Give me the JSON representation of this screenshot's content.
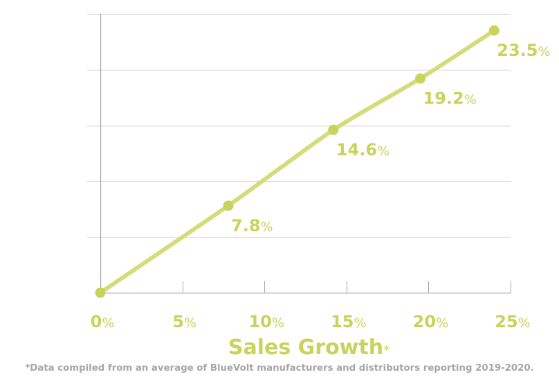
{
  "colors": {
    "accent": "#c8d35c",
    "line": "#d3dc7a",
    "grid": "#c9c9c9",
    "axis": "#a9a9a9",
    "footnote": "#a6a6a6"
  },
  "chart_data": {
    "type": "line",
    "x_axis": {
      "label": "Sales Growth",
      "label_suffix": "*",
      "ticks": [
        {
          "value": 0,
          "number": "0",
          "unit": "%"
        },
        {
          "value": 5,
          "number": "5",
          "unit": "%"
        },
        {
          "value": 10,
          "number": "10",
          "unit": "%"
        },
        {
          "value": 15,
          "number": "15",
          "unit": "%"
        },
        {
          "value": 20,
          "number": "20",
          "unit": "%"
        },
        {
          "value": 25,
          "number": "25",
          "unit": "%"
        }
      ],
      "range": [
        0,
        25
      ]
    },
    "y_axis": {
      "label": "",
      "range": [
        0,
        25
      ],
      "gridlines": 5
    },
    "grid": true,
    "series": [
      {
        "points": [
          {
            "x": 0,
            "y": 0,
            "label_number": "",
            "label_unit": ""
          },
          {
            "x": 7.8,
            "y": 7.8,
            "label_number": "7.8",
            "label_unit": "%"
          },
          {
            "x": 14.2,
            "y": 14.6,
            "label_number": "14.6",
            "label_unit": "%"
          },
          {
            "x": 19.5,
            "y": 19.2,
            "label_number": "19.2",
            "label_unit": "%"
          },
          {
            "x": 24,
            "y": 23.5,
            "label_number": "23.5",
            "label_unit": "%"
          }
        ]
      }
    ]
  },
  "footnote": "*Data compiled from an average of BlueVolt manufacturers and distributors reporting 2019-2020."
}
